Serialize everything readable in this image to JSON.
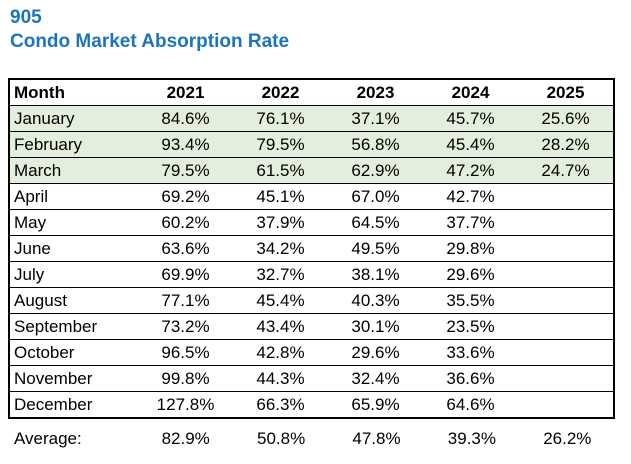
{
  "header": {
    "title": "905",
    "subtitle": "Condo Market Absorption Rate"
  },
  "colors": {
    "accent_blue": "#1B75BC",
    "highlight_green": "#E4EEDC",
    "border_black": "#000000"
  },
  "table": {
    "columns": [
      "Month",
      "2021",
      "2022",
      "2023",
      "2024",
      "2025"
    ],
    "rows": [
      {
        "month": "January",
        "values": [
          "84.6%",
          "76.1%",
          "37.1%",
          "45.7%",
          "25.6%"
        ],
        "highlight": true
      },
      {
        "month": "February",
        "values": [
          "93.4%",
          "79.5%",
          "56.8%",
          "45.4%",
          "28.2%"
        ],
        "highlight": true
      },
      {
        "month": "March",
        "values": [
          "79.5%",
          "61.5%",
          "62.9%",
          "47.2%",
          "24.7%"
        ],
        "highlight": true
      },
      {
        "month": "April",
        "values": [
          "69.2%",
          "45.1%",
          "67.0%",
          "42.7%",
          ""
        ],
        "highlight": false
      },
      {
        "month": "May",
        "values": [
          "60.2%",
          "37.9%",
          "64.5%",
          "37.7%",
          ""
        ],
        "highlight": false
      },
      {
        "month": "June",
        "values": [
          "63.6%",
          "34.2%",
          "49.5%",
          "29.8%",
          ""
        ],
        "highlight": false
      },
      {
        "month": "July",
        "values": [
          "69.9%",
          "32.7%",
          "38.1%",
          "29.6%",
          ""
        ],
        "highlight": false
      },
      {
        "month": "August",
        "values": [
          "77.1%",
          "45.4%",
          "40.3%",
          "35.5%",
          ""
        ],
        "highlight": false
      },
      {
        "month": "September",
        "values": [
          "73.2%",
          "43.4%",
          "30.1%",
          "23.5%",
          ""
        ],
        "highlight": false
      },
      {
        "month": "October",
        "values": [
          "96.5%",
          "42.8%",
          "29.6%",
          "33.6%",
          ""
        ],
        "highlight": false
      },
      {
        "month": "November",
        "values": [
          "99.8%",
          "44.3%",
          "32.4%",
          "36.6%",
          ""
        ],
        "highlight": false
      },
      {
        "month": "December",
        "values": [
          "127.8%",
          "66.3%",
          "65.9%",
          "64.6%",
          ""
        ],
        "highlight": false
      }
    ],
    "average": {
      "label": "Average:",
      "values": [
        "82.9%",
        "50.8%",
        "47.8%",
        "39.3%",
        "26.2%"
      ]
    }
  },
  "chart_data": {
    "type": "table",
    "title": "905 Condo Market Absorption Rate",
    "units": "%",
    "categories": [
      "January",
      "February",
      "March",
      "April",
      "May",
      "June",
      "July",
      "August",
      "September",
      "October",
      "November",
      "December",
      "Average"
    ],
    "series": [
      {
        "name": "2021",
        "values": [
          84.6,
          93.4,
          79.5,
          69.2,
          60.2,
          63.6,
          69.9,
          77.1,
          73.2,
          96.5,
          99.8,
          127.8,
          82.9
        ]
      },
      {
        "name": "2022",
        "values": [
          76.1,
          79.5,
          61.5,
          45.1,
          37.9,
          34.2,
          32.7,
          45.4,
          43.4,
          42.8,
          44.3,
          66.3,
          50.8
        ]
      },
      {
        "name": "2023",
        "values": [
          37.1,
          56.8,
          62.9,
          67.0,
          64.5,
          49.5,
          38.1,
          40.3,
          30.1,
          29.6,
          32.4,
          65.9,
          47.8
        ]
      },
      {
        "name": "2024",
        "values": [
          45.7,
          45.4,
          47.2,
          42.7,
          37.7,
          29.8,
          29.6,
          35.5,
          23.5,
          33.6,
          36.6,
          64.6,
          39.3
        ]
      },
      {
        "name": "2025",
        "values": [
          25.6,
          28.2,
          24.7,
          null,
          null,
          null,
          null,
          null,
          null,
          null,
          null,
          null,
          26.2
        ]
      }
    ],
    "layout_hints": {
      "highlighted_rows": [
        "January",
        "February",
        "March"
      ],
      "grid": "horizontal-only",
      "month_column_align": "left",
      "value_columns_align": "center"
    }
  }
}
